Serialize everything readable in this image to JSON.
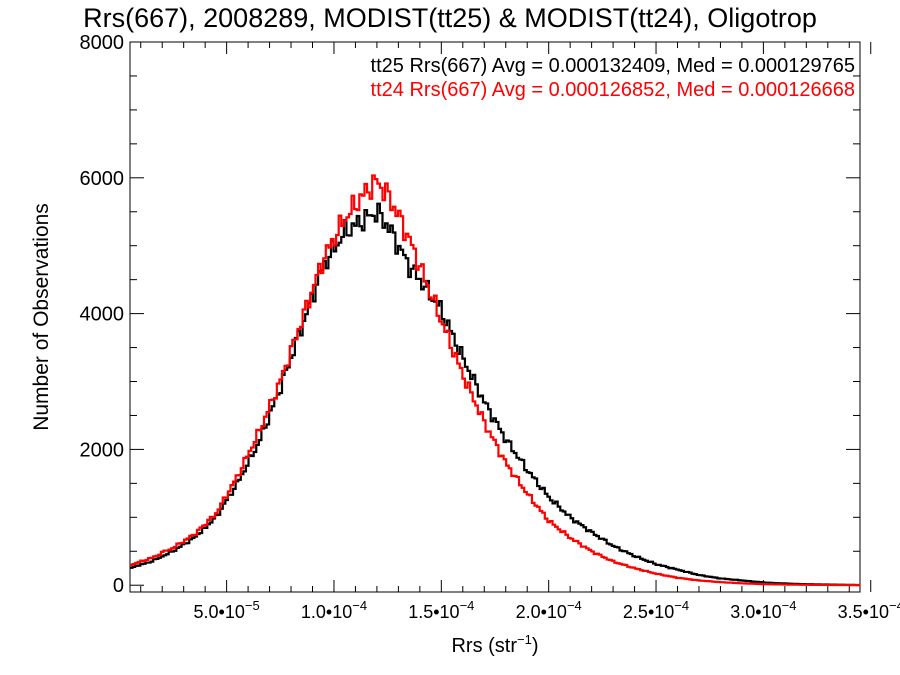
{
  "chart_data": {
    "type": "line",
    "title": "Rrs(667), 2008289, MODIST(tt25) & MODIST(tt24), Oligotrop",
    "xlabel_main": "Rrs (str",
    "xlabel_sup": "−1",
    "xlabel_close": ")",
    "ylabel": "Number of Observations",
    "xlim": [
      5e-06,
      0.000345
    ],
    "ylim": [
      -100,
      8000
    ],
    "grid": false,
    "x_ticks": [
      {
        "value": 5e-05,
        "mant": "5.0•10",
        "exp": "−5"
      },
      {
        "value": 0.0001,
        "mant": "1.0•10",
        "exp": "−4"
      },
      {
        "value": 0.00015,
        "mant": "1.5•10",
        "exp": "−4"
      },
      {
        "value": 0.0002,
        "mant": "2.0•10",
        "exp": "−4"
      },
      {
        "value": 0.00025,
        "mant": "2.5•10",
        "exp": "−4"
      },
      {
        "value": 0.0003,
        "mant": "3.0•10",
        "exp": "−4"
      },
      {
        "value": 0.00035,
        "mant": "3.5•10",
        "exp": "−4"
      }
    ],
    "y_ticks": [
      {
        "value": 0,
        "label": "0"
      },
      {
        "value": 2000,
        "label": "2000"
      },
      {
        "value": 4000,
        "label": "4000"
      },
      {
        "value": 6000,
        "label": "6000"
      },
      {
        "value": 8000,
        "label": "8000"
      }
    ],
    "legend_placement": "top-right",
    "series": [
      {
        "name": "tt25",
        "color": "#000000",
        "annotation": "tt25 Rrs(667) Avg = 0.000132409, Med = 0.000129765",
        "x": [
          5e-06,
          1.5e-05,
          2.5e-05,
          3.5e-05,
          4.5e-05,
          5.5e-05,
          6.5e-05,
          7.5e-05,
          8.5e-05,
          9.5e-05,
          0.000105,
          0.000115,
          0.00012,
          0.000125,
          0.00013,
          0.000135,
          0.00014,
          0.00015,
          0.00016,
          0.00017,
          0.00018,
          0.00019,
          0.0002,
          0.00021,
          0.00022,
          0.00023,
          0.00024,
          0.00025,
          0.00026,
          0.00027,
          0.00028,
          0.00029,
          0.0003,
          0.00031,
          0.00032,
          0.00033,
          0.00034,
          0.000345
        ],
        "y": [
          250,
          350,
          500,
          700,
          1000,
          1500,
          2100,
          2900,
          3800,
          4700,
          5200,
          5400,
          5500,
          5300,
          5000,
          4700,
          4500,
          4050,
          3350,
          2700,
          2150,
          1700,
          1300,
          1000,
          780,
          580,
          430,
          310,
          230,
          150,
          100,
          70,
          40,
          25,
          15,
          10,
          5,
          3
        ]
      },
      {
        "name": "tt24",
        "color": "#ff0000",
        "annotation": "tt24 Rrs(667) Avg = 0.000126852, Med = 0.000126668",
        "x": [
          5e-06,
          1.5e-05,
          2.5e-05,
          3.5e-05,
          4.5e-05,
          5.5e-05,
          6.5e-05,
          7.5e-05,
          8.5e-05,
          9.5e-05,
          0.000105,
          0.000115,
          0.00012,
          0.000125,
          0.00013,
          0.000135,
          0.00014,
          0.00015,
          0.00016,
          0.00017,
          0.00018,
          0.00019,
          0.0002,
          0.00021,
          0.00022,
          0.00023,
          0.00024,
          0.00025,
          0.00026,
          0.00027,
          0.00028,
          0.00029,
          0.0003,
          0.00031,
          0.00032,
          0.00033,
          0.00034,
          0.000345
        ],
        "y": [
          300,
          400,
          550,
          750,
          1050,
          1600,
          2250,
          3000,
          3900,
          4800,
          5400,
          5800,
          5950,
          5750,
          5450,
          5100,
          4700,
          3900,
          3100,
          2400,
          1800,
          1350,
          950,
          700,
          500,
          350,
          250,
          170,
          110,
          70,
          45,
          28,
          16,
          10,
          6,
          4,
          2,
          1
        ]
      }
    ]
  }
}
